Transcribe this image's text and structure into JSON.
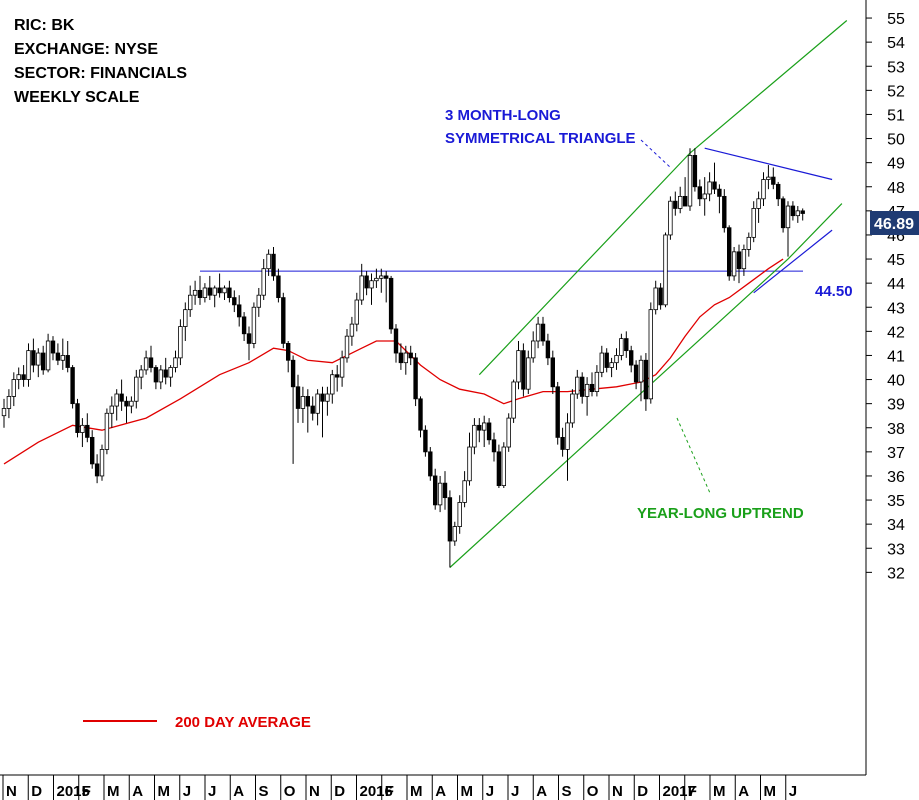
{
  "info_lines": [
    "RIC: BK",
    "EXCHANGE: NYSE",
    "SECTOR: FINANCIALS",
    "WEEKLY SCALE"
  ],
  "annotations": {
    "triangle": [
      "3 MONTH-LONG",
      "SYMMETRICAL TRIANGLE"
    ],
    "uptrend": "YEAR-LONG UPTREND",
    "level": "44.50",
    "ma_legend": "200 DAY AVERAGE",
    "last_price": "46.89"
  },
  "colors": {
    "up": "#ffffff",
    "down": "#000000",
    "wick": "#000000",
    "moving_average": "#e00000",
    "channel": "#1aa01a",
    "triangle": "#1a1ad6",
    "horizontal_level": "#1a1ad6",
    "last_price_box": "#1f3b73"
  },
  "chart_data": {
    "type": "candlestick",
    "ylim": [
      31.5,
      55.5
    ],
    "y_ticks": [
      32,
      33,
      34,
      35,
      36,
      37,
      38,
      39,
      40,
      41,
      42,
      43,
      44,
      45,
      46,
      47,
      48,
      49,
      50,
      51,
      52,
      53,
      54,
      55
    ],
    "x_ticks": [
      "N",
      "D",
      "2015",
      "F",
      "M",
      "A",
      "M",
      "J",
      "J",
      "A",
      "S",
      "O",
      "N",
      "D",
      "2016",
      "F",
      "M",
      "A",
      "M",
      "J",
      "J",
      "A",
      "S",
      "O",
      "N",
      "D",
      "2017",
      "F",
      "M",
      "A",
      "M",
      "J"
    ],
    "grid": false,
    "horizontal_level": 44.5,
    "last_price": 46.89,
    "ohlc": [
      [
        38.5,
        39.2,
        38.0,
        38.8
      ],
      [
        38.8,
        39.6,
        38.4,
        39.3
      ],
      [
        39.3,
        40.3,
        38.9,
        40.0
      ],
      [
        40.0,
        40.5,
        39.6,
        40.2
      ],
      [
        40.2,
        40.6,
        39.7,
        40.0
      ],
      [
        40.0,
        41.5,
        39.7,
        41.2
      ],
      [
        41.2,
        41.7,
        40.3,
        40.6
      ],
      [
        40.6,
        41.3,
        40.1,
        41.1
      ],
      [
        41.1,
        41.4,
        40.2,
        40.4
      ],
      [
        40.4,
        41.9,
        40.3,
        41.6
      ],
      [
        41.6,
        41.8,
        40.8,
        41.1
      ],
      [
        41.1,
        41.5,
        40.6,
        40.8
      ],
      [
        40.8,
        41.7,
        40.4,
        41.0
      ],
      [
        41.0,
        41.6,
        40.3,
        40.5
      ],
      [
        40.5,
        40.6,
        38.8,
        39.0
      ],
      [
        39.0,
        39.2,
        37.6,
        37.8
      ],
      [
        37.8,
        38.4,
        37.2,
        38.1
      ],
      [
        38.1,
        38.6,
        37.4,
        37.6
      ],
      [
        37.6,
        37.9,
        36.3,
        36.5
      ],
      [
        36.5,
        36.9,
        35.7,
        36.0
      ],
      [
        36.0,
        37.3,
        35.8,
        37.1
      ],
      [
        37.1,
        38.8,
        36.9,
        38.6
      ],
      [
        38.6,
        39.3,
        38.0,
        38.9
      ],
      [
        38.9,
        39.6,
        38.3,
        39.4
      ],
      [
        39.4,
        40.0,
        38.7,
        39.1
      ],
      [
        39.1,
        39.3,
        38.2,
        38.9
      ],
      [
        38.9,
        39.3,
        38.6,
        39.1
      ],
      [
        39.1,
        40.4,
        38.8,
        40.1
      ],
      [
        40.1,
        40.6,
        39.6,
        40.4
      ],
      [
        40.4,
        41.2,
        40.2,
        40.9
      ],
      [
        40.9,
        41.4,
        40.3,
        40.5
      ],
      [
        40.5,
        40.6,
        39.6,
        39.9
      ],
      [
        39.9,
        40.6,
        39.6,
        40.4
      ],
      [
        40.4,
        40.9,
        39.8,
        40.1
      ],
      [
        40.1,
        40.6,
        39.7,
        40.5
      ],
      [
        40.5,
        41.2,
        40.3,
        40.9
      ],
      [
        40.9,
        42.5,
        40.6,
        42.2
      ],
      [
        42.2,
        43.2,
        41.6,
        42.9
      ],
      [
        42.9,
        43.9,
        42.6,
        43.5
      ],
      [
        43.5,
        44.1,
        43.1,
        43.7
      ],
      [
        43.7,
        44.3,
        43.1,
        43.4
      ],
      [
        43.4,
        44.0,
        43.2,
        43.8
      ],
      [
        43.8,
        44.3,
        43.3,
        43.5
      ],
      [
        43.5,
        43.9,
        43.0,
        43.8
      ],
      [
        43.8,
        44.4,
        43.4,
        43.6
      ],
      [
        43.6,
        43.9,
        43.3,
        43.8
      ],
      [
        43.8,
        44.1,
        43.2,
        43.4
      ],
      [
        43.4,
        43.7,
        42.8,
        43.1
      ],
      [
        43.1,
        43.5,
        42.2,
        42.6
      ],
      [
        42.6,
        42.8,
        41.6,
        41.9
      ],
      [
        41.9,
        42.2,
        40.8,
        41.5
      ],
      [
        41.5,
        43.2,
        41.3,
        43.0
      ],
      [
        43.0,
        43.8,
        42.6,
        43.5
      ],
      [
        43.5,
        45.0,
        43.3,
        44.6
      ],
      [
        44.6,
        45.4,
        44.3,
        45.2
      ],
      [
        45.2,
        45.5,
        44.1,
        44.3
      ],
      [
        44.3,
        44.6,
        43.2,
        43.4
      ],
      [
        43.4,
        43.6,
        41.3,
        41.5
      ],
      [
        41.5,
        41.6,
        40.3,
        40.8
      ],
      [
        40.8,
        41.0,
        36.5,
        39.7
      ],
      [
        39.7,
        40.2,
        38.2,
        38.8
      ],
      [
        38.8,
        39.7,
        38.2,
        39.3
      ],
      [
        39.3,
        39.6,
        37.8,
        38.9
      ],
      [
        38.9,
        39.3,
        38.3,
        38.6
      ],
      [
        38.6,
        39.6,
        38.1,
        39.4
      ],
      [
        39.4,
        39.7,
        37.6,
        39.1
      ],
      [
        39.1,
        39.7,
        38.5,
        39.4
      ],
      [
        39.4,
        40.4,
        39.0,
        40.2
      ],
      [
        40.2,
        40.6,
        39.5,
        40.1
      ],
      [
        40.1,
        41.2,
        39.7,
        40.9
      ],
      [
        40.9,
        42.1,
        40.7,
        41.8
      ],
      [
        41.8,
        42.6,
        41.4,
        42.3
      ],
      [
        42.3,
        43.6,
        42.0,
        43.3
      ],
      [
        43.3,
        44.8,
        43.1,
        44.3
      ],
      [
        44.3,
        44.5,
        43.5,
        43.8
      ],
      [
        43.8,
        44.4,
        43.1,
        44.1
      ],
      [
        44.1,
        44.6,
        43.8,
        44.2
      ],
      [
        44.2,
        44.6,
        43.6,
        44.3
      ],
      [
        44.3,
        44.5,
        43.2,
        44.2
      ],
      [
        44.2,
        44.3,
        41.9,
        42.1
      ],
      [
        42.1,
        42.3,
        40.7,
        41.1
      ],
      [
        41.1,
        41.5,
        40.4,
        40.7
      ],
      [
        40.7,
        41.4,
        40.2,
        41.1
      ],
      [
        41.1,
        41.4,
        40.6,
        40.9
      ],
      [
        40.9,
        41.1,
        38.9,
        39.2
      ],
      [
        39.2,
        39.3,
        37.6,
        37.9
      ],
      [
        37.9,
        38.1,
        36.8,
        37.0
      ],
      [
        37.0,
        37.2,
        35.8,
        36.0
      ],
      [
        36.0,
        36.3,
        34.6,
        34.8
      ],
      [
        34.8,
        36.0,
        34.5,
        35.7
      ],
      [
        35.7,
        36.2,
        34.6,
        35.1
      ],
      [
        35.1,
        35.4,
        32.2,
        33.3
      ],
      [
        33.3,
        34.1,
        33.1,
        33.9
      ],
      [
        33.9,
        35.2,
        33.6,
        34.9
      ],
      [
        34.9,
        36.2,
        34.7,
        35.8
      ],
      [
        35.8,
        37.8,
        35.6,
        37.2
      ],
      [
        37.2,
        38.4,
        36.9,
        38.1
      ],
      [
        38.1,
        38.4,
        37.4,
        37.9
      ],
      [
        37.9,
        38.5,
        37.2,
        38.2
      ],
      [
        38.2,
        38.4,
        37.3,
        37.5
      ],
      [
        37.5,
        37.8,
        36.6,
        37.0
      ],
      [
        37.0,
        37.3,
        35.5,
        35.6
      ],
      [
        35.6,
        37.4,
        35.5,
        37.2
      ],
      [
        37.2,
        38.6,
        37.0,
        38.4
      ],
      [
        38.4,
        40.0,
        38.2,
        39.9
      ],
      [
        39.9,
        41.6,
        39.6,
        41.2
      ],
      [
        41.2,
        41.5,
        39.3,
        39.6
      ],
      [
        39.6,
        41.2,
        39.4,
        40.9
      ],
      [
        40.9,
        42.0,
        40.7,
        41.6
      ],
      [
        41.6,
        42.6,
        41.3,
        42.3
      ],
      [
        42.3,
        42.6,
        41.4,
        41.6
      ],
      [
        41.6,
        41.9,
        40.6,
        40.9
      ],
      [
        40.9,
        41.2,
        39.4,
        39.7
      ],
      [
        39.7,
        39.9,
        37.3,
        37.6
      ],
      [
        37.6,
        38.0,
        36.8,
        37.1
      ],
      [
        37.1,
        38.6,
        35.8,
        38.2
      ],
      [
        38.2,
        39.6,
        38.0,
        39.4
      ],
      [
        39.4,
        40.4,
        39.2,
        40.1
      ],
      [
        40.1,
        40.3,
        39.0,
        39.3
      ],
      [
        39.3,
        40.1,
        38.5,
        39.8
      ],
      [
        39.8,
        40.3,
        39.3,
        39.5
      ],
      [
        39.5,
        40.6,
        39.3,
        40.3
      ],
      [
        40.3,
        41.4,
        40.1,
        41.1
      ],
      [
        41.1,
        41.3,
        40.3,
        40.5
      ],
      [
        40.5,
        40.9,
        40.1,
        40.7
      ],
      [
        40.7,
        41.3,
        40.4,
        41.0
      ],
      [
        41.0,
        41.9,
        40.8,
        41.7
      ],
      [
        41.7,
        42.0,
        40.9,
        41.2
      ],
      [
        41.2,
        41.4,
        40.3,
        40.6
      ],
      [
        40.6,
        40.8,
        39.6,
        39.9
      ],
      [
        39.9,
        41.0,
        39.1,
        40.8
      ],
      [
        40.8,
        41.1,
        38.7,
        39.2
      ],
      [
        39.2,
        43.2,
        39.0,
        42.9
      ],
      [
        42.9,
        44.1,
        42.7,
        43.8
      ],
      [
        43.8,
        44.0,
        42.9,
        43.1
      ],
      [
        43.1,
        46.1,
        43.0,
        46.0
      ],
      [
        46.0,
        47.6,
        45.8,
        47.4
      ],
      [
        47.4,
        47.8,
        46.8,
        47.1
      ],
      [
        47.1,
        48.0,
        46.9,
        47.6
      ],
      [
        47.6,
        48.4,
        47.2,
        47.2
      ],
      [
        47.2,
        49.6,
        47.0,
        49.3
      ],
      [
        49.3,
        49.6,
        47.8,
        48.0
      ],
      [
        48.0,
        48.3,
        47.2,
        47.5
      ],
      [
        47.5,
        48.4,
        46.8,
        47.7
      ],
      [
        47.7,
        48.6,
        47.4,
        48.2
      ],
      [
        48.2,
        49.0,
        47.7,
        47.9
      ],
      [
        47.9,
        48.1,
        46.9,
        47.6
      ],
      [
        47.6,
        47.9,
        46.1,
        46.3
      ],
      [
        46.3,
        46.4,
        44.1,
        44.3
      ],
      [
        44.3,
        45.5,
        44.1,
        45.3
      ],
      [
        45.3,
        45.6,
        44.0,
        44.6
      ],
      [
        44.6,
        45.6,
        44.3,
        45.4
      ],
      [
        45.4,
        46.1,
        45.1,
        45.9
      ],
      [
        45.9,
        47.4,
        45.7,
        47.1
      ],
      [
        47.1,
        47.8,
        46.5,
        47.5
      ],
      [
        47.5,
        48.6,
        47.2,
        48.3
      ],
      [
        48.3,
        48.9,
        47.9,
        48.4
      ],
      [
        48.4,
        48.8,
        47.9,
        48.1
      ],
      [
        48.1,
        48.2,
        47.2,
        47.5
      ],
      [
        47.5,
        47.6,
        46.1,
        46.3
      ],
      [
        46.3,
        47.4,
        45.1,
        47.2
      ],
      [
        47.2,
        47.4,
        46.6,
        46.8
      ],
      [
        46.8,
        47.2,
        46.5,
        47.0
      ],
      [
        47.0,
        47.1,
        46.6,
        46.89
      ]
    ],
    "moving_average_200d": [
      [
        0,
        36.5
      ],
      [
        7,
        37.4
      ],
      [
        14,
        38.1
      ],
      [
        20,
        37.9
      ],
      [
        29,
        38.4
      ],
      [
        36,
        39.2
      ],
      [
        44,
        40.2
      ],
      [
        50,
        40.7
      ],
      [
        55,
        41.3
      ],
      [
        58,
        41.2
      ],
      [
        62,
        40.8
      ],
      [
        67,
        40.7
      ],
      [
        73,
        41.3
      ],
      [
        76,
        41.6
      ],
      [
        80,
        41.6
      ],
      [
        85,
        40.6
      ],
      [
        89,
        40.0
      ],
      [
        93,
        39.6
      ],
      [
        98,
        39.4
      ],
      [
        102,
        39.0
      ],
      [
        105,
        39.2
      ],
      [
        110,
        39.5
      ],
      [
        115,
        39.5
      ],
      [
        120,
        39.6
      ],
      [
        125,
        39.7
      ],
      [
        130,
        39.9
      ],
      [
        133,
        40.2
      ],
      [
        136,
        40.9
      ],
      [
        139,
        41.8
      ],
      [
        142,
        42.6
      ],
      [
        145,
        43.1
      ],
      [
        148,
        43.4
      ],
      [
        152,
        44.0
      ],
      [
        156,
        44.6
      ],
      [
        159,
        45.0
      ]
    ],
    "channel": {
      "lower": [
        [
          91,
          32.2
        ],
        [
          160,
          45.0
        ],
        [
          171,
          47.3
        ]
      ],
      "upper": [
        [
          97,
          40.2
        ],
        [
          140,
          49.4
        ],
        [
          172,
          54.9
        ]
      ]
    },
    "triangle": {
      "upper": [
        [
          143,
          49.6
        ],
        [
          169,
          48.3
        ]
      ],
      "lower": [
        [
          153,
          43.6
        ],
        [
          169,
          46.2
        ]
      ]
    }
  }
}
